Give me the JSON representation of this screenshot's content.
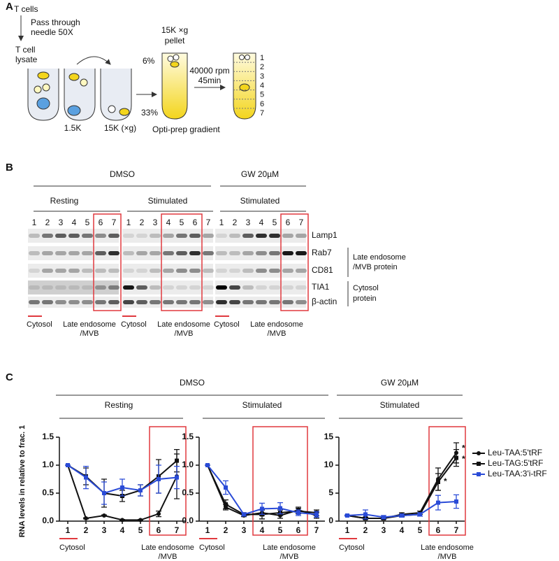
{
  "panel_a": {
    "label": "A",
    "start": "T cells",
    "step": [
      "Pass through",
      "needle 50X"
    ],
    "lysate": [
      "T cell",
      "lysate"
    ],
    "spin1": "1.5K",
    "spin2": "15K (×g)",
    "pellet": [
      "15K ×g",
      "pellet"
    ],
    "top_pct": "6%",
    "bottom_pct": "33%",
    "gradient": "Opti-prep gradient",
    "spin3": [
      "40000 rpm",
      "45min"
    ],
    "fractions": [
      "1",
      "2",
      "3",
      "4",
      "5",
      "6",
      "7"
    ]
  },
  "panel_b": {
    "label": "B",
    "treatments": [
      "DMSO",
      "GW 20µM"
    ],
    "conditions": [
      "Resting",
      "Stimulated",
      "Stimulated"
    ],
    "lanes": [
      "1",
      "2",
      "3",
      "4",
      "5",
      "6",
      "7"
    ],
    "proteins": [
      "Lamp1",
      "Rab7",
      "CD81",
      "TIA1",
      "β-actin"
    ],
    "groups": [
      [
        "Late endosome",
        "/MVB protein"
      ],
      [
        "Cytosol",
        "protein"
      ]
    ],
    "cytosol": "Cytosol",
    "late": [
      "Late endosome",
      "/MVB"
    ]
  },
  "panel_c": {
    "label": "C",
    "treatments": [
      "DMSO",
      "GW 20µM"
    ],
    "conditions": [
      "Resting",
      "Stimulated",
      "Stimulated"
    ],
    "ylabel": "RNA levels in relative to frac. 1",
    "cytosol": "Cytosol",
    "late": [
      "Late endosome",
      "/MVB"
    ]
  },
  "chart_data": [
    {
      "type": "line",
      "categories": [
        "1",
        "2",
        "3",
        "4",
        "5",
        "6",
        "7"
      ],
      "ylim": [
        0,
        1.5
      ],
      "yticks": [
        {
          "value": 0,
          "label": "0.0"
        },
        0.5,
        {
          "value": 1,
          "label": "1.0"
        },
        1.5
      ],
      "series": [
        {
          "name": "Leu-TAA:5'tRF",
          "color": "#111111",
          "marker": "circle",
          "values": [
            1,
            0.05,
            0.1,
            0.02,
            0.02,
            0.13,
            0.8
          ],
          "errors": [
            0,
            0.01,
            0.01,
            0.01,
            0.01,
            0.05,
            0.4
          ]
        },
        {
          "name": "Leu-TAG:5'tRF",
          "color": "#111111",
          "marker": "square",
          "values": [
            1,
            0.8,
            0.5,
            0.45,
            0.55,
            0.8,
            1.08
          ],
          "errors": [
            0,
            0.15,
            0.25,
            0.1,
            0.1,
            0.3,
            0.2
          ]
        },
        {
          "name": "Leu-TAA:3'i-tRF",
          "color": "#2a4bd7",
          "marker": "square",
          "values": [
            1,
            0.78,
            0.5,
            0.6,
            0.55,
            0.75,
            0.78
          ],
          "errors": [
            0,
            0.2,
            0.2,
            0.15,
            0.1,
            0.25,
            0.2
          ]
        }
      ]
    },
    {
      "type": "line",
      "categories": [
        "1",
        "2",
        "3",
        "4",
        "5",
        "6",
        "7"
      ],
      "ylim": [
        0,
        1.5
      ],
      "yticks": [
        {
          "value": 0,
          "label": "0.0"
        },
        0.5,
        {
          "value": 1,
          "label": "1.0"
        },
        1.5
      ],
      "series": [
        {
          "name": "Leu-TAA:5'tRF",
          "color": "#111111",
          "marker": "circle",
          "values": [
            1,
            0.25,
            0.1,
            0.15,
            0.1,
            0.2,
            0.1
          ],
          "errors": [
            0,
            0.05,
            0.02,
            0.05,
            0.05,
            0.05,
            0.05
          ]
        },
        {
          "name": "Leu-TAG:5'tRF",
          "color": "#111111",
          "marker": "square",
          "values": [
            1,
            0.3,
            0.12,
            0.12,
            0.15,
            0.18,
            0.15
          ],
          "errors": [
            0,
            0.08,
            0.03,
            0.08,
            0.05,
            0.05,
            0.05
          ]
        },
        {
          "name": "Leu-TAA:3'i-tRF",
          "color": "#2a4bd7",
          "marker": "square",
          "values": [
            1,
            0.6,
            0.12,
            0.22,
            0.23,
            0.15,
            0.12
          ],
          "errors": [
            0,
            0.12,
            0.03,
            0.1,
            0.1,
            0.05,
            0.05
          ]
        }
      ]
    },
    {
      "type": "line",
      "categories": [
        "1",
        "2",
        "3",
        "4",
        "5",
        "6",
        "7"
      ],
      "ylim": [
        0,
        15
      ],
      "yticks": [
        0,
        5,
        10,
        15
      ],
      "series": [
        {
          "name": "Leu-TAA:5'tRF",
          "color": "#111111",
          "marker": "circle",
          "values": [
            1,
            0.5,
            0.5,
            1.2,
            1.5,
            7.5,
            12.2
          ],
          "errors": [
            0.1,
            0.2,
            0.2,
            0.3,
            0.3,
            2,
            1.8
          ]
        },
        {
          "name": "Leu-TAG:5'tRF",
          "color": "#111111",
          "marker": "square",
          "values": [
            1,
            0.5,
            0.5,
            1,
            1.2,
            7,
            11.3
          ],
          "errors": [
            0.1,
            0.2,
            0.2,
            0.3,
            0.3,
            1.5,
            1.5
          ]
        },
        {
          "name": "Leu-TAA:3'i-tRF",
          "color": "#2a4bd7",
          "marker": "square",
          "values": [
            1,
            1.2,
            0.7,
            1,
            1.2,
            3.3,
            3.5
          ],
          "errors": [
            0.1,
            0.8,
            0.3,
            0.3,
            0.3,
            1.3,
            1.2
          ]
        }
      ],
      "annotations": [
        "*",
        "*",
        "*"
      ]
    }
  ]
}
